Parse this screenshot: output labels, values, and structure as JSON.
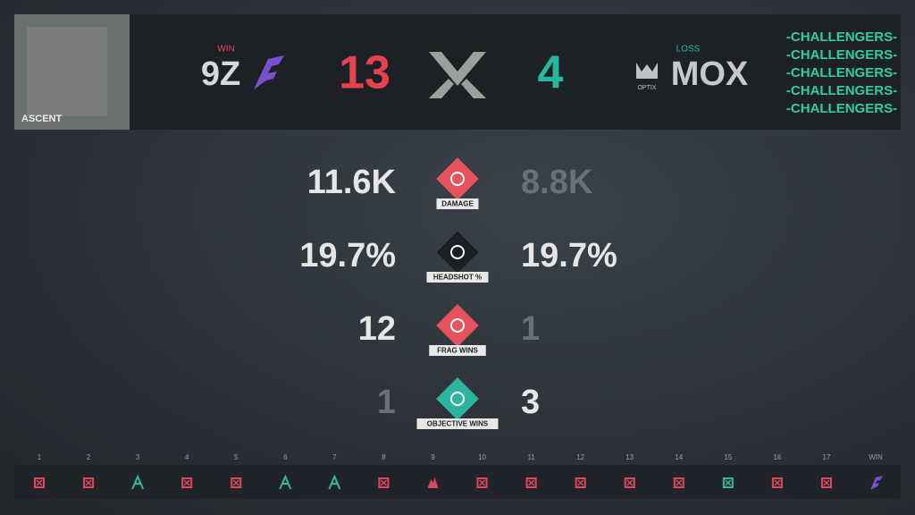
{
  "map": "ASCENT",
  "team_left": {
    "result": "WIN",
    "name": "9Z",
    "score": "13",
    "result_color": "#e0475a",
    "score_color": "#e8404f"
  },
  "team_right": {
    "result": "LOSS",
    "name": "MOX",
    "score": "4",
    "logo_text": "OPTIX",
    "result_color": "#2fb8a2",
    "score_color": "#27b79e"
  },
  "brand": [
    "-CHALLENGERS-",
    "-CHALLENGERS-",
    "-CHALLENGERS-",
    "-CHALLENGERS-",
    "-CHALLENGERS-"
  ],
  "stats": [
    {
      "label": "DAMAGE",
      "left": "11.6K",
      "right": "8.8K",
      "icon_color": "#e8525c",
      "left_dim": false,
      "right_dim": true
    },
    {
      "label": "HEADSHOT %",
      "left": "19.7%",
      "right": "19.7%",
      "icon_color": "#1b1f23",
      "left_dim": false,
      "right_dim": false
    },
    {
      "label": "FRAG WINS",
      "left": "12",
      "right": "1",
      "icon_color": "#e8525c",
      "left_dim": false,
      "right_dim": true
    },
    {
      "label": "OBJECTIVE WINS",
      "left": "1",
      "right": "3",
      "icon_color": "#2bb5a0",
      "left_dim": true,
      "right_dim": false
    }
  ],
  "rounds": [
    {
      "label": "1",
      "icon": "elim",
      "color": "#e0475a"
    },
    {
      "label": "2",
      "icon": "elim",
      "color": "#e0475a"
    },
    {
      "label": "3",
      "icon": "defuse",
      "color": "#2fb8a2"
    },
    {
      "label": "4",
      "icon": "elim",
      "color": "#e0475a"
    },
    {
      "label": "5",
      "icon": "elim",
      "color": "#e0475a"
    },
    {
      "label": "6",
      "icon": "defuse",
      "color": "#2fb8a2"
    },
    {
      "label": "7",
      "icon": "defuse",
      "color": "#2fb8a2"
    },
    {
      "label": "8",
      "icon": "elim",
      "color": "#e0475a"
    },
    {
      "label": "9",
      "icon": "detonate",
      "color": "#e0475a"
    },
    {
      "label": "10",
      "icon": "elim",
      "color": "#e0475a"
    },
    {
      "label": "11",
      "icon": "elim",
      "color": "#e0475a"
    },
    {
      "label": "12",
      "icon": "elim",
      "color": "#e0475a"
    },
    {
      "label": "13",
      "icon": "elim",
      "color": "#e0475a"
    },
    {
      "label": "14",
      "icon": "elim",
      "color": "#e0475a"
    },
    {
      "label": "15",
      "icon": "elim",
      "color": "#2fb8a2"
    },
    {
      "label": "16",
      "icon": "elim",
      "color": "#e0475a"
    },
    {
      "label": "17",
      "icon": "elim",
      "color": "#e0475a"
    }
  ],
  "final_label": "WIN"
}
